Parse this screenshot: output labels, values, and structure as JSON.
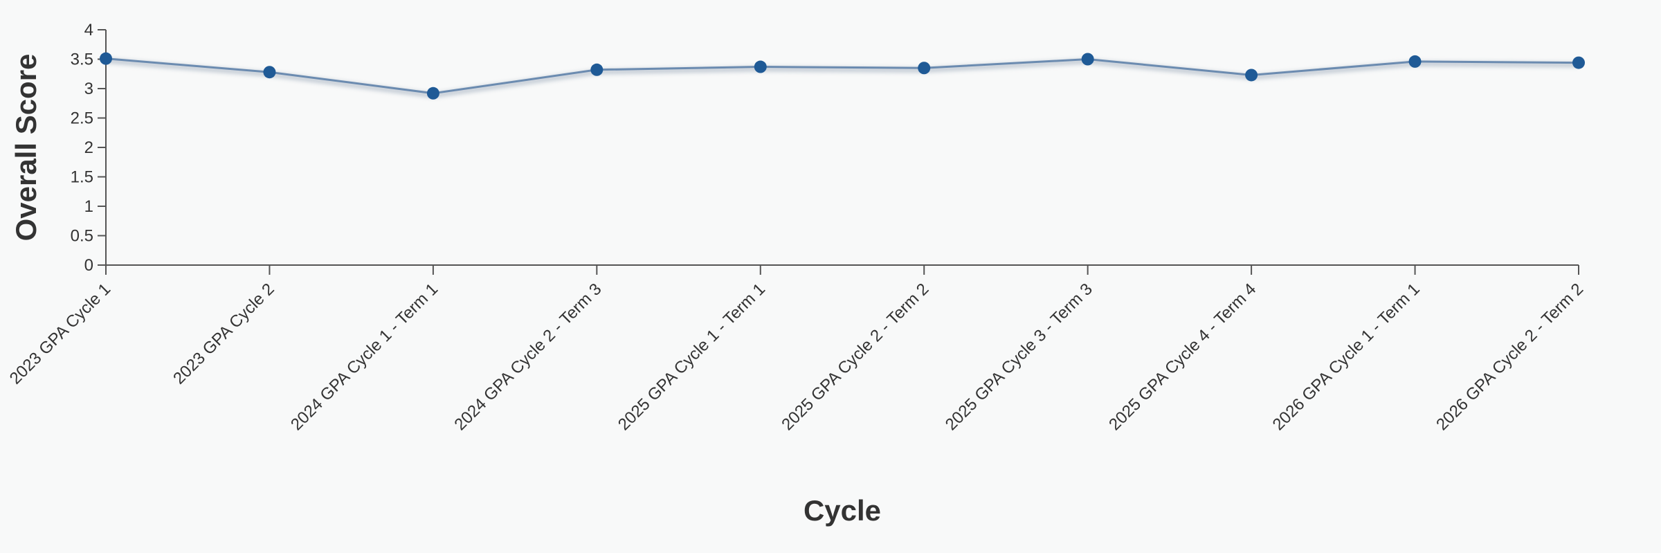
{
  "chart_data": {
    "type": "line",
    "x_label": "Cycle",
    "y_label": "Overall Score",
    "categories": [
      "2023 GPA Cycle 1",
      "2023 GPA Cycle 2",
      "2024 GPA Cycle 1 - Term 1",
      "2024 GPA Cycle 2 - Term 3",
      "2025 GPA Cycle 1 - Term 1",
      "2025 GPA Cycle 2 - Term 2",
      "2025 GPA Cycle 3 - Term 3",
      "2025 GPA Cycle 4 - Term 4",
      "2026 GPA Cycle 1 - Term 1",
      "2026 GPA Cycle 2 - Term 2"
    ],
    "series": [
      {
        "name": "Overall Score",
        "color": "#1f5a96",
        "values": [
          3.51,
          3.28,
          2.92,
          3.32,
          3.37,
          3.35,
          3.5,
          3.23,
          3.46,
          3.44
        ]
      }
    ],
    "ylim": [
      0,
      4
    ],
    "yticks": [
      0,
      0.5,
      1,
      1.5,
      2,
      2.5,
      3,
      3.5,
      4
    ]
  }
}
